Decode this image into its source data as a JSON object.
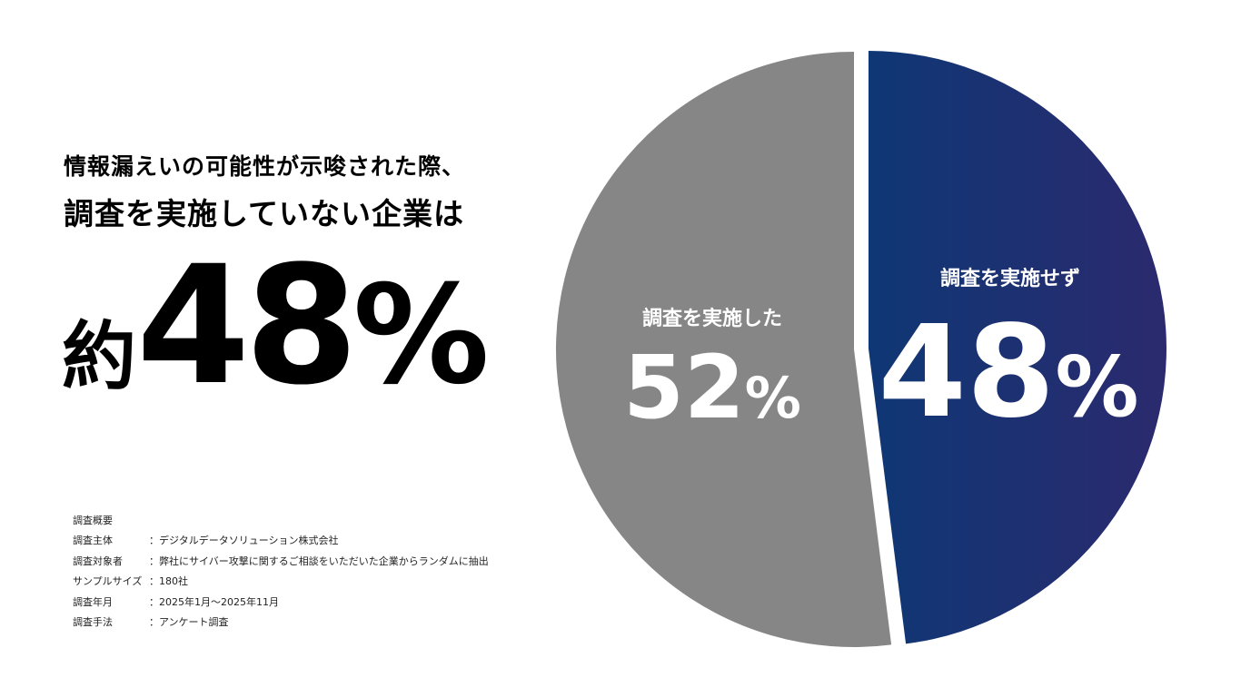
{
  "headline": {
    "line1": "情報漏えいの可能性が示唆された際、",
    "line2": "調査を実施していない企業は",
    "big_prefix": "約",
    "big_number": "48",
    "big_unit": "%"
  },
  "survey": {
    "title": "調査概要",
    "rows": [
      {
        "label": "調査主体",
        "value": "：デジタルデータソリューション株式会社"
      },
      {
        "label": "調査対象者",
        "value": "：弊社にサイバー攻撃に関するご相談をいただいた企業からランダムに抽出"
      },
      {
        "label": "サンプルサイズ",
        "value": "：180社"
      },
      {
        "label": "調査年月",
        "value": "：2025年1月～2025年11月"
      },
      {
        "label": "調査手法",
        "value": "：アンケート調査"
      }
    ]
  },
  "chart_data": {
    "type": "pie",
    "title": "",
    "slices": [
      {
        "label": "調査を実施せず",
        "value": 48,
        "display_number": "48",
        "display_unit": "%",
        "color": "#2b2a6e",
        "color_start": "#0f3775",
        "exploded": true
      },
      {
        "label": "調査を実施した",
        "value": 52,
        "display_number": "52",
        "display_unit": "%",
        "color": "#868686",
        "exploded": false
      }
    ]
  }
}
